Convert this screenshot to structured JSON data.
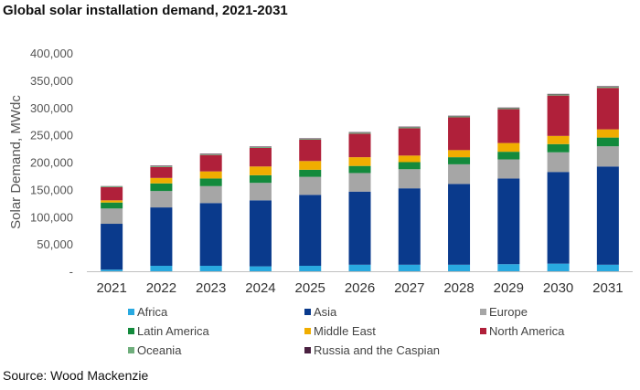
{
  "title": "Global solar installation demand, 2021-2031",
  "source": "Source: Wood Mackenzie",
  "chart_data": {
    "type": "bar",
    "stacked": true,
    "categories": [
      "2021",
      "2022",
      "2023",
      "2024",
      "2025",
      "2026",
      "2027",
      "2028",
      "2029",
      "2030",
      "2031"
    ],
    "ylabel": "Solar Demand, MWdc",
    "xlabel": "",
    "ylim": [
      0,
      400000
    ],
    "yticks": [
      0,
      50000,
      100000,
      150000,
      200000,
      250000,
      300000,
      350000,
      400000
    ],
    "ytick_labels": [
      "-",
      "50,000",
      "100,000",
      "150,000",
      "200,000",
      "250,000",
      "300,000",
      "350,000",
      "400,000"
    ],
    "grid": false,
    "legend_position": "bottom",
    "series": [
      {
        "name": "Africa",
        "color": "#29a9e0",
        "values": [
          3000,
          10000,
          10000,
          9000,
          10000,
          12000,
          12000,
          12000,
          13000,
          14000,
          12000
        ]
      },
      {
        "name": "Asia",
        "color": "#0a3a8c",
        "values": [
          84000,
          107000,
          115000,
          121000,
          130000,
          134000,
          140000,
          148000,
          157000,
          168000,
          180000
        ]
      },
      {
        "name": "Europe",
        "color": "#a6a6a6",
        "values": [
          28000,
          30000,
          31000,
          32000,
          33000,
          34000,
          35000,
          36000,
          35000,
          36000,
          37000
        ]
      },
      {
        "name": "Latin America",
        "color": "#138a3c",
        "values": [
          11000,
          14000,
          14000,
          14000,
          13000,
          13000,
          13000,
          13000,
          14000,
          15000,
          16000
        ]
      },
      {
        "name": "Middle East",
        "color": "#f0ad00",
        "values": [
          4000,
          10000,
          13000,
          16000,
          16000,
          16000,
          12000,
          13000,
          16000,
          15000,
          15000
        ]
      },
      {
        "name": "North America",
        "color": "#b0203a",
        "values": [
          24000,
          20000,
          30000,
          34000,
          39000,
          43000,
          50000,
          60000,
          62000,
          74000,
          76000
        ]
      },
      {
        "name": "Oceania",
        "color": "#6fae7c",
        "values": [
          1500,
          1500,
          1500,
          1500,
          1500,
          2000,
          2000,
          2000,
          2000,
          2000,
          2000
        ]
      },
      {
        "name": "Russia and the Caspian",
        "color": "#4a2140",
        "values": [
          500,
          1000,
          1000,
          1000,
          1000,
          1000,
          1000,
          1000,
          1000,
          1000,
          1000
        ]
      }
    ]
  }
}
